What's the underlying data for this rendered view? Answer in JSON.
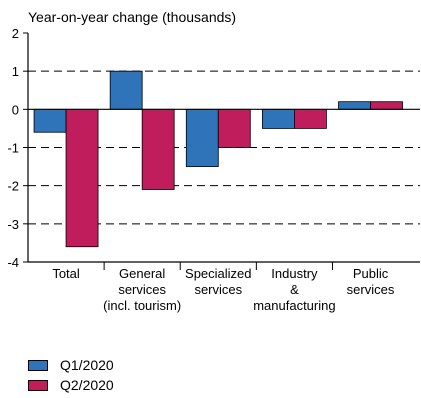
{
  "chart_data": {
    "type": "bar",
    "title": "Year-on-year change (thousands)",
    "categories": [
      [
        "Total"
      ],
      [
        "General",
        "services",
        "(incl. tourism)"
      ],
      [
        "Specialized",
        "services"
      ],
      [
        "Industry",
        "&",
        "manufacturing"
      ],
      [
        "Public",
        "services"
      ]
    ],
    "series": [
      {
        "name": "Q1/2020",
        "color": "#2f73b9",
        "values": [
          -0.6,
          1.0,
          -1.5,
          -0.5,
          0.2
        ]
      },
      {
        "name": "Q2/2020",
        "color": "#bf1d5c",
        "values": [
          -3.6,
          -2.1,
          -1.0,
          -0.5,
          0.2
        ]
      }
    ],
    "ylim": [
      -4,
      2
    ],
    "yticks": [
      2,
      1,
      0,
      -1,
      -2,
      -3,
      -4
    ],
    "ytick_labels": [
      "2",
      "1",
      "0",
      "-1",
      "-2",
      "-3",
      "-4"
    ],
    "grid": "dashed horizontal",
    "legend_position": "bottom-left"
  }
}
